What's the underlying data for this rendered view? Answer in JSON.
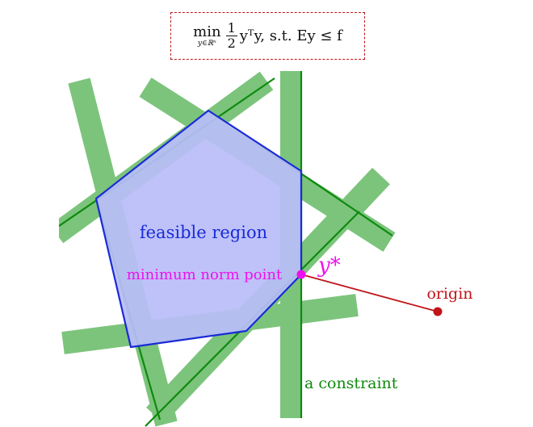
{
  "formula": {
    "min_word": "min",
    "min_subscript": "y∈ℝⁿ",
    "fraction_numerator": "1",
    "fraction_denominator": "2",
    "expression": "yᵀy, s.t. Ey ≤ f"
  },
  "labels": {
    "feasible_region": "feasible region",
    "minimum_norm_point": "minimum norm point",
    "y_star": "y*",
    "origin": "origin",
    "constraint": "a constraint"
  },
  "colors": {
    "constraint_band": "#7cc47c",
    "constraint_line": "#0e8a0e",
    "feasible_fill": "#b9bdf8",
    "feasible_edge": "#1a2bd6",
    "highlight": "#ee11ee",
    "origin": "#c0141a",
    "formula_border": "#c0141a"
  }
}
